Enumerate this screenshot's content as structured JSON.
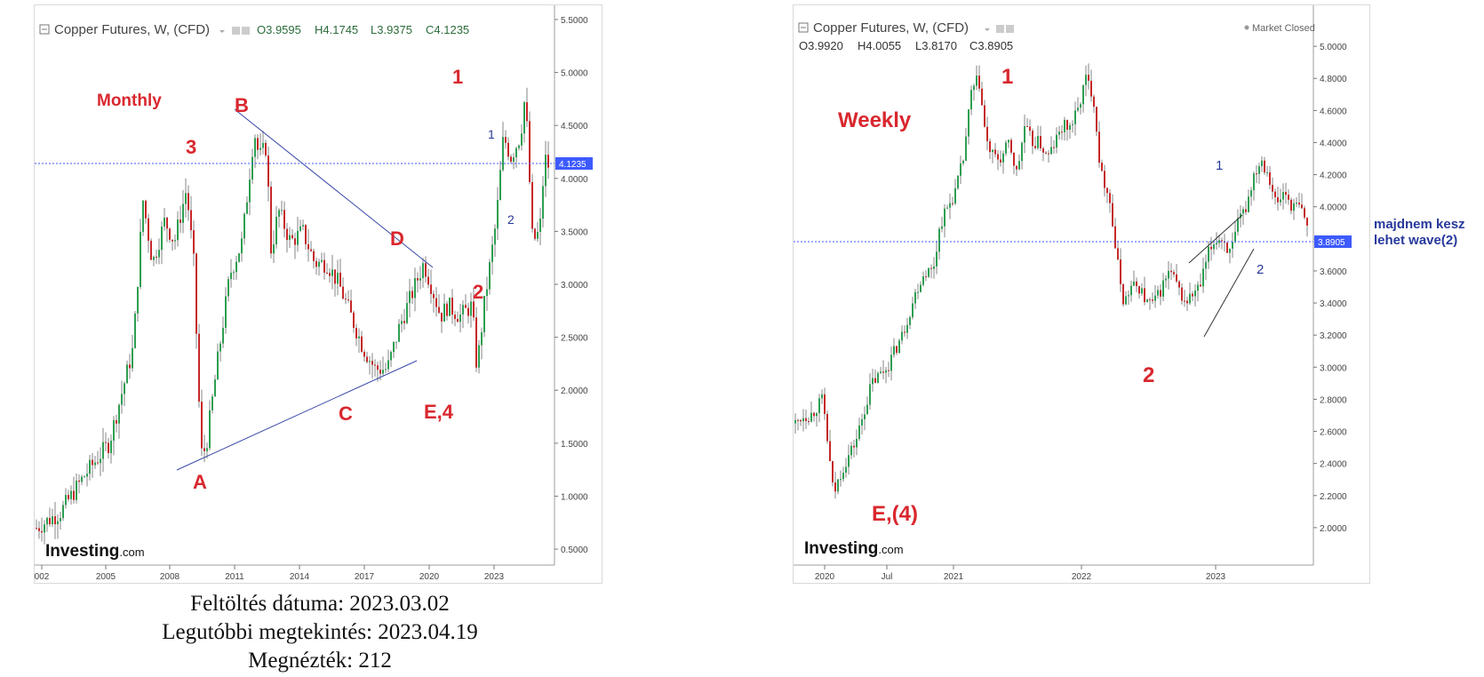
{
  "left_chart": {
    "title": "Copper Futures, W, (CFD)",
    "ohlc": {
      "open": "O3.9595",
      "high": "H4.1745",
      "low": "L3.9375",
      "close": "C4.1235"
    },
    "price_tag": "4.1235",
    "stray_label": "3",
    "logo": "Investing",
    "logo_suffix": ".com",
    "annotations": {
      "monthly": "Monthly",
      "B": "B",
      "three": "3",
      "A": "A",
      "C": "C",
      "D": "D",
      "E4": "E,4",
      "one_red": "1",
      "two_red": "2",
      "one_blue": "1",
      "two_blue": "2"
    }
  },
  "right_chart": {
    "title": "Copper Futures, W, (CFD)",
    "ohlc": {
      "open": "O3.9920",
      "high": "H4.0055",
      "low": "L3.8170",
      "close": "C3.8905"
    },
    "status": "Market Closed",
    "price_tag": "3.8905",
    "logo": "Investing",
    "logo_suffix": ".com",
    "annotations": {
      "weekly": "Weekly",
      "one_red": "1",
      "two_red": "2",
      "E4": "E,(4)",
      "one_blue": "1",
      "two_blue": "2"
    }
  },
  "side_note": {
    "line1": "majdnem kesz",
    "line2": "lehet wave(2)"
  },
  "caption": {
    "line1": "Feltöltés dátuma: 2023.03.02",
    "line2": "Legutóbbi megtekintés: 2023.04.19",
    "line3": "Megnézték: 212"
  },
  "colors": {
    "annotation_red": "#d9272e",
    "annotation_blue": "#27399a",
    "up_candle": "#2e9e52",
    "down_candle": "#c62828",
    "price_line": "#3d5afe"
  },
  "chart_data": [
    {
      "type": "line",
      "title": "Copper Futures, W, (CFD)",
      "xlabel": "",
      "ylabel": "",
      "x_ticks": [
        "002",
        "2005",
        "2008",
        "2011",
        "2014",
        "2017",
        "2020",
        "2023"
      ],
      "y_ticks": [
        "5.5000",
        "5.0000",
        "4.5000",
        "4.0000",
        "3.5000",
        "3.0000",
        "2.5000",
        "2.0000",
        "1.5000",
        "1.0000",
        "0.5000"
      ],
      "ylim": [
        0.4,
        5.55
      ],
      "x": [
        2002.0,
        2003.0,
        2004.0,
        2005.0,
        2006.0,
        2006.4,
        2006.8,
        2007.3,
        2007.7,
        2008.2,
        2008.5,
        2008.8,
        2009.0,
        2009.5,
        2010.0,
        2010.5,
        2011.0,
        2011.2,
        2011.5,
        2011.7,
        2012.0,
        2012.5,
        2013.0,
        2013.5,
        2014.0,
        2014.5,
        2015.0,
        2015.5,
        2016.0,
        2016.5,
        2017.0,
        2017.5,
        2018.0,
        2018.3,
        2018.7,
        2019.0,
        2019.5,
        2020.0,
        2020.2,
        2020.5,
        2021.0,
        2021.3,
        2021.6,
        2022.0,
        2022.2,
        2022.5,
        2022.8,
        2023.0,
        2023.15
      ],
      "y": [
        0.7,
        0.85,
        1.2,
        1.5,
        2.4,
        3.8,
        3.2,
        3.6,
        3.4,
        3.9,
        3.2,
        1.4,
        1.45,
        2.3,
        3.1,
        3.4,
        4.45,
        4.2,
        4.3,
        3.3,
        3.7,
        3.4,
        3.5,
        3.2,
        3.2,
        3.0,
        2.7,
        2.4,
        2.2,
        2.2,
        2.6,
        2.9,
        3.2,
        3.0,
        2.7,
        2.8,
        2.7,
        2.8,
        2.2,
        2.8,
        3.6,
        4.4,
        4.2,
        4.4,
        4.8,
        3.4,
        3.5,
        4.2,
        4.12
      ],
      "annotations": [
        "Monthly",
        "B",
        "3",
        "A",
        "C",
        "D",
        "E,4",
        "1",
        "2",
        "1",
        "2"
      ]
    },
    {
      "type": "line",
      "title": "Copper Futures, W, (CFD)",
      "xlabel": "",
      "ylabel": "",
      "x_ticks": [
        "2020",
        "Jul",
        "2021",
        "2022",
        "2023"
      ],
      "y_ticks": [
        "5.0000",
        "4.8000",
        "4.6000",
        "4.4000",
        "4.2000",
        "4.0000",
        "3.8000",
        "3.6000",
        "3.4000",
        "3.2000",
        "3.0000",
        "2.8000",
        "2.6000",
        "2.4000",
        "2.2000",
        "2.0000"
      ],
      "ylim": [
        1.8,
        5.2
      ],
      "x": [
        0.0,
        0.05,
        0.1,
        0.18,
        0.25,
        0.3,
        0.4,
        0.5,
        0.6,
        0.7,
        0.8,
        0.85,
        0.9,
        0.95,
        1.0,
        1.05,
        1.1,
        1.15,
        1.2,
        1.25,
        1.3,
        1.35,
        1.4,
        1.45,
        1.5,
        1.55,
        1.6,
        1.65,
        1.7,
        1.75,
        1.8,
        1.85,
        1.9,
        1.95,
        2.0,
        2.05,
        2.1,
        2.15,
        2.2,
        2.25,
        2.3,
        2.35,
        2.4,
        2.45,
        2.5,
        2.55,
        2.6,
        2.65,
        2.7,
        2.75,
        2.8,
        2.85,
        2.9,
        2.95,
        3.0,
        3.05,
        3.1,
        3.15,
        3.2,
        3.25,
        3.3,
        3.35
      ],
      "y": [
        2.65,
        2.7,
        2.7,
        2.8,
        2.2,
        2.35,
        2.55,
        2.9,
        3.0,
        3.2,
        3.5,
        3.6,
        3.6,
        3.9,
        4.0,
        4.1,
        4.3,
        4.7,
        4.8,
        4.4,
        4.3,
        4.3,
        4.4,
        4.2,
        4.5,
        4.4,
        4.4,
        4.3,
        4.4,
        4.5,
        4.5,
        4.6,
        4.8,
        4.7,
        4.2,
        4.1,
        3.7,
        3.4,
        3.5,
        3.5,
        3.4,
        3.4,
        3.5,
        3.6,
        3.5,
        3.4,
        3.45,
        3.5,
        3.7,
        3.8,
        3.8,
        3.7,
        3.9,
        4.0,
        4.2,
        4.3,
        4.2,
        4.0,
        4.1,
        4.0,
        4.0,
        3.89
      ],
      "annotations": [
        "Weekly",
        "1",
        "2",
        "E,(4)",
        "1",
        "2"
      ]
    }
  ]
}
